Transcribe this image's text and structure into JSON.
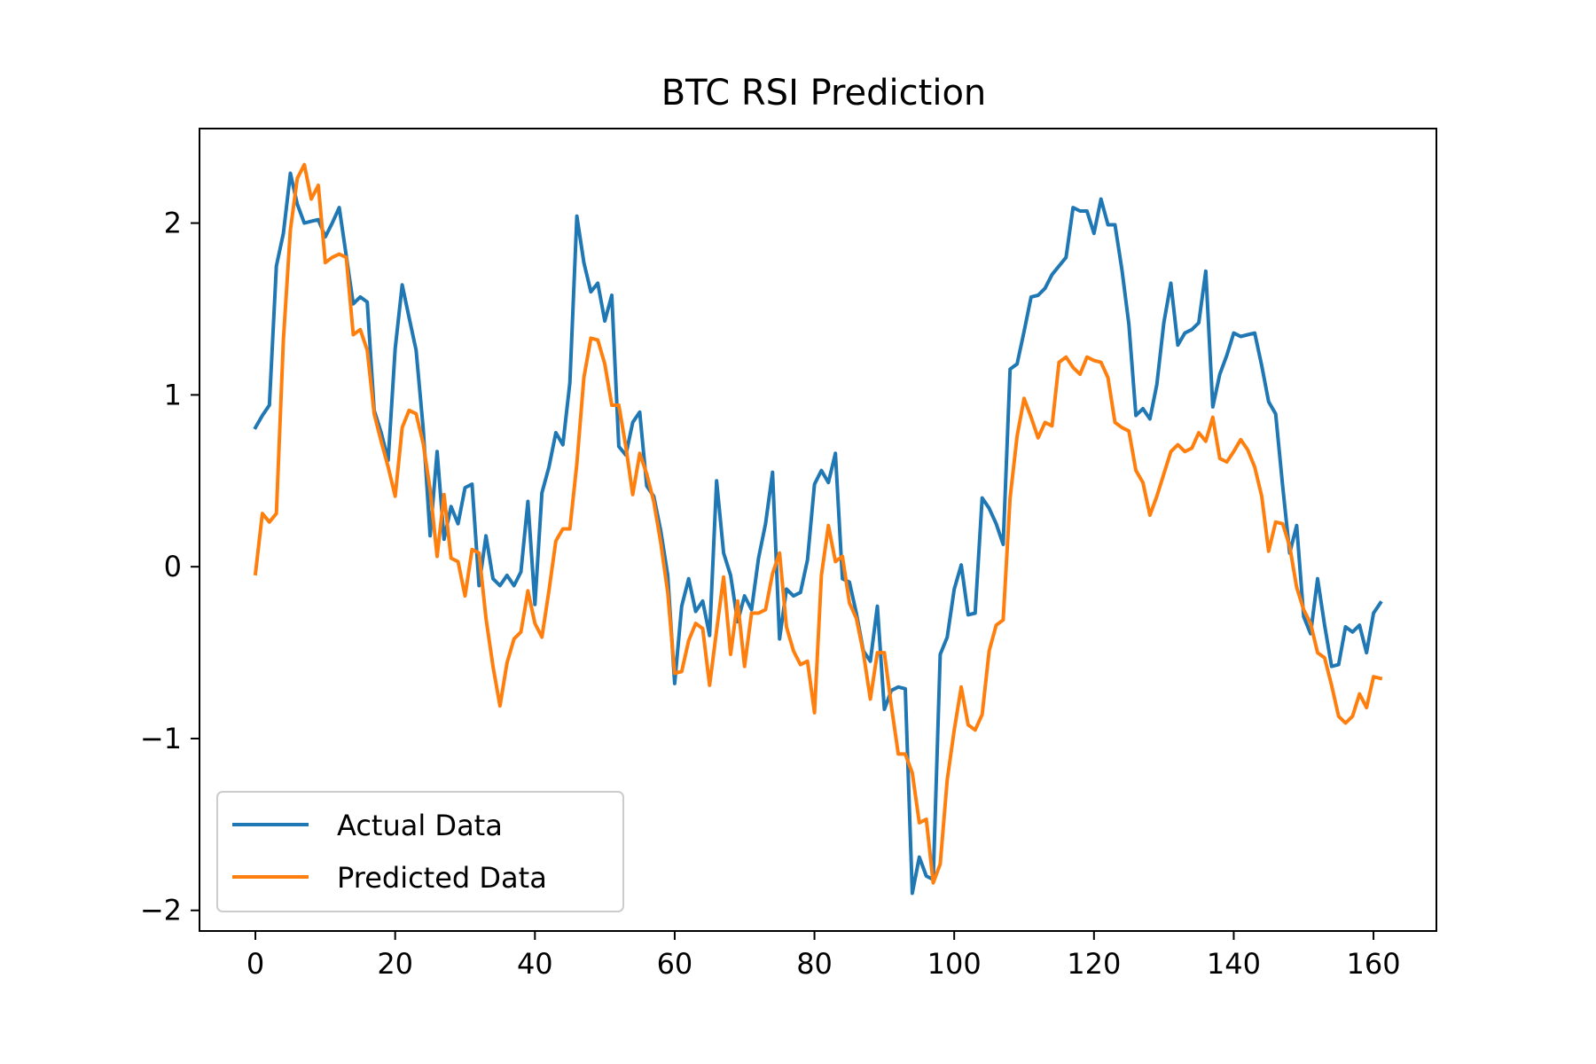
{
  "chart_data": {
    "type": "line",
    "title": "BTC RSI Prediction",
    "xlabel": "",
    "ylabel": "",
    "xlim": [
      -8,
      169
    ],
    "ylim": [
      -2.12,
      2.55
    ],
    "xticks": [
      0,
      20,
      40,
      60,
      80,
      100,
      120,
      140,
      160
    ],
    "yticks": [
      -2,
      -1,
      0,
      1,
      2
    ],
    "xtick_labels": [
      "0",
      "20",
      "40",
      "60",
      "80",
      "100",
      "120",
      "140",
      "160"
    ],
    "ytick_labels": [
      "−2",
      "−1",
      "0",
      "1",
      "2"
    ],
    "grid": false,
    "legend_position": "lower-left",
    "series": [
      {
        "name": "Actual Data",
        "color": "#1f77b4",
        "values": [
          0.81,
          0.88,
          0.94,
          1.75,
          1.94,
          2.29,
          2.11,
          2.0,
          2.01,
          2.02,
          1.92,
          2.0,
          2.09,
          1.81,
          1.53,
          1.57,
          1.54,
          0.91,
          0.78,
          0.62,
          1.27,
          1.64,
          1.45,
          1.26,
          0.81,
          0.18,
          0.67,
          0.16,
          0.35,
          0.25,
          0.46,
          0.48,
          -0.11,
          0.18,
          -0.07,
          -0.11,
          -0.05,
          -0.11,
          -0.03,
          0.38,
          -0.22,
          0.43,
          0.58,
          0.78,
          0.71,
          1.07,
          2.04,
          1.77,
          1.6,
          1.65,
          1.43,
          1.58,
          0.7,
          0.65,
          0.84,
          0.9,
          0.47,
          0.41,
          0.21,
          -0.05,
          -0.68,
          -0.23,
          -0.07,
          -0.26,
          -0.2,
          -0.4,
          0.5,
          0.08,
          -0.05,
          -0.32,
          -0.17,
          -0.25,
          0.05,
          0.25,
          0.55,
          -0.42,
          -0.13,
          -0.17,
          -0.15,
          0.04,
          0.48,
          0.56,
          0.49,
          0.66,
          -0.07,
          -0.09,
          -0.27,
          -0.49,
          -0.55,
          -0.23,
          -0.83,
          -0.72,
          -0.7,
          -0.71,
          -1.9,
          -1.69,
          -1.8,
          -1.82,
          -0.51,
          -0.41,
          -0.13,
          0.01,
          -0.28,
          -0.27,
          0.4,
          0.34,
          0.25,
          0.13,
          1.15,
          1.18,
          1.37,
          1.57,
          1.58,
          1.62,
          1.7,
          1.75,
          1.8,
          2.09,
          2.07,
          2.07,
          1.94,
          2.14,
          1.99,
          1.99,
          1.73,
          1.41,
          0.88,
          0.92,
          0.86,
          1.06,
          1.42,
          1.65,
          1.29,
          1.36,
          1.38,
          1.42,
          1.72,
          0.93,
          1.12,
          1.23,
          1.36,
          1.34,
          1.35,
          1.36,
          1.17,
          0.96,
          0.89,
          0.47,
          0.08,
          0.24,
          -0.29,
          -0.39,
          -0.07,
          -0.34,
          -0.58,
          -0.57,
          -0.35,
          -0.38,
          -0.34,
          -0.5,
          -0.27,
          -0.21
        ],
        "line_width": 4
      },
      {
        "name": "Predicted Data",
        "color": "#ff7f0e",
        "values": [
          -0.04,
          0.31,
          0.26,
          0.31,
          1.32,
          1.96,
          2.26,
          2.34,
          2.14,
          2.22,
          1.77,
          1.8,
          1.82,
          1.8,
          1.35,
          1.38,
          1.26,
          0.89,
          0.73,
          0.58,
          0.41,
          0.81,
          0.91,
          0.89,
          0.72,
          0.45,
          0.06,
          0.42,
          0.05,
          0.03,
          -0.17,
          0.1,
          0.08,
          -0.3,
          -0.58,
          -0.81,
          -0.56,
          -0.42,
          -0.38,
          -0.14,
          -0.33,
          -0.41,
          -0.14,
          0.15,
          0.22,
          0.22,
          0.6,
          1.1,
          1.33,
          1.32,
          1.18,
          0.94,
          0.94,
          0.7,
          0.42,
          0.66,
          0.54,
          0.38,
          0.14,
          -0.15,
          -0.62,
          -0.61,
          -0.43,
          -0.33,
          -0.36,
          -0.69,
          -0.37,
          -0.06,
          -0.51,
          -0.2,
          -0.58,
          -0.27,
          -0.27,
          -0.25,
          -0.04,
          0.08,
          -0.35,
          -0.49,
          -0.57,
          -0.55,
          -0.85,
          -0.05,
          0.24,
          0.03,
          0.06,
          -0.21,
          -0.3,
          -0.5,
          -0.77,
          -0.5,
          -0.5,
          -0.81,
          -1.09,
          -1.09,
          -1.2,
          -1.49,
          -1.47,
          -1.84,
          -1.73,
          -1.24,
          -0.95,
          -0.7,
          -0.92,
          -0.95,
          -0.86,
          -0.49,
          -0.34,
          -0.31,
          0.4,
          0.76,
          0.98,
          0.87,
          0.75,
          0.84,
          0.82,
          1.19,
          1.22,
          1.16,
          1.12,
          1.22,
          1.2,
          1.19,
          1.1,
          0.84,
          0.81,
          0.79,
          0.56,
          0.49,
          0.3,
          0.41,
          0.54,
          0.67,
          0.71,
          0.67,
          0.69,
          0.78,
          0.73,
          0.87,
          0.63,
          0.61,
          0.67,
          0.74,
          0.68,
          0.58,
          0.41,
          0.09,
          0.26,
          0.25,
          0.12,
          -0.12,
          -0.25,
          -0.33,
          -0.5,
          -0.53,
          -0.69,
          -0.87,
          -0.91,
          -0.87,
          -0.74,
          -0.82,
          -0.64,
          -0.65
        ],
        "line_width": 4
      }
    ]
  }
}
